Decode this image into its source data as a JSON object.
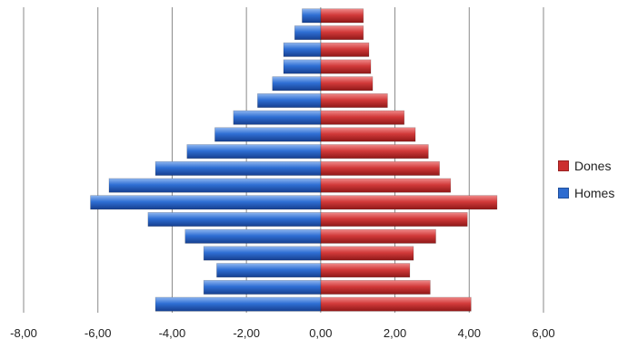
{
  "chart_data": {
    "type": "bar",
    "orientation": "horizontal",
    "stacked_about_zero": true,
    "title": "",
    "xlabel": "",
    "ylabel": "",
    "xlim": [
      -8,
      6
    ],
    "x_ticks": [
      -8,
      -6,
      -4,
      -2,
      0,
      2,
      4,
      6
    ],
    "x_tick_labels": [
      "-8,00",
      "-6,00",
      "-4,00",
      "-2,00",
      "0,00",
      "2,00",
      "4,00",
      "6,00"
    ],
    "grid": "vertical",
    "legend_position": "right",
    "series": [
      {
        "name": "Dones",
        "color": "#cc2e2e",
        "values": [
          1.15,
          1.15,
          1.3,
          1.35,
          1.4,
          1.8,
          2.25,
          2.55,
          2.9,
          3.2,
          3.5,
          4.75,
          3.95,
          3.1,
          2.5,
          2.4,
          2.95,
          4.05
        ]
      },
      {
        "name": "Homes",
        "color": "#2e6cd0",
        "values": [
          -0.5,
          -0.7,
          -1.0,
          -1.0,
          -1.3,
          -1.7,
          -2.35,
          -2.85,
          -3.6,
          -4.45,
          -5.7,
          -6.2,
          -4.65,
          -3.65,
          -3.15,
          -2.8,
          -3.15,
          -4.45
        ]
      }
    ]
  },
  "legend": {
    "items": [
      {
        "label": "Dones",
        "color": "#cc2e2e"
      },
      {
        "label": "Homes",
        "color": "#2e6cd0"
      }
    ]
  }
}
